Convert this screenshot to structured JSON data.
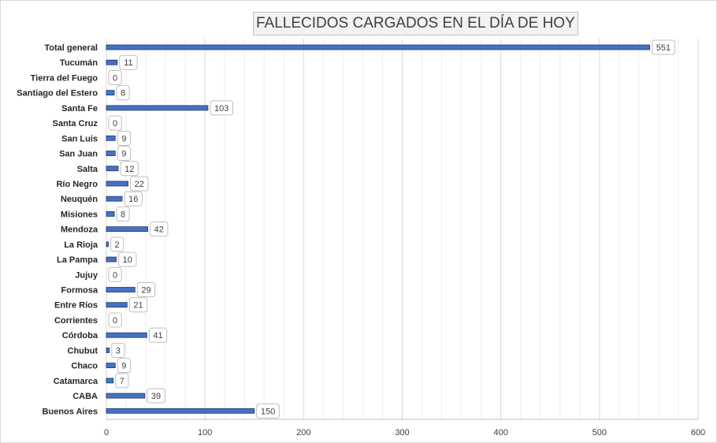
{
  "chart_data": {
    "type": "bar",
    "orientation": "horizontal",
    "title": "FALLECIDOS CARGADOS EN EL DÍA DE HOY",
    "categories": [
      "Total general",
      "Tucumán",
      "Tierra del Fuego",
      "Santiago del Estero",
      "Santa Fe",
      "Santa Cruz",
      "San Luis",
      "San Juan",
      "Salta",
      "Río Negro",
      "Neuquén",
      "Misiones",
      "Mendoza",
      "La Rioja",
      "La Pampa",
      "Jujuy",
      "Formosa",
      "Entre Ríos",
      "Corrientes",
      "Córdoba",
      "Chubut",
      "Chaco",
      "Catamarca",
      "CABA",
      "Buenos Aires"
    ],
    "values": [
      551,
      11,
      0,
      8,
      103,
      0,
      9,
      9,
      12,
      22,
      16,
      8,
      42,
      2,
      10,
      0,
      29,
      21,
      0,
      41,
      3,
      9,
      7,
      39,
      150
    ],
    "xlim": [
      0,
      600
    ],
    "x_ticks": [
      0,
      100,
      200,
      300,
      400,
      500,
      600
    ],
    "grid": "vertical",
    "legend": "none",
    "bar_color": "#4472c4",
    "bar_edge_color": "#1f3864",
    "data_labels": true
  }
}
